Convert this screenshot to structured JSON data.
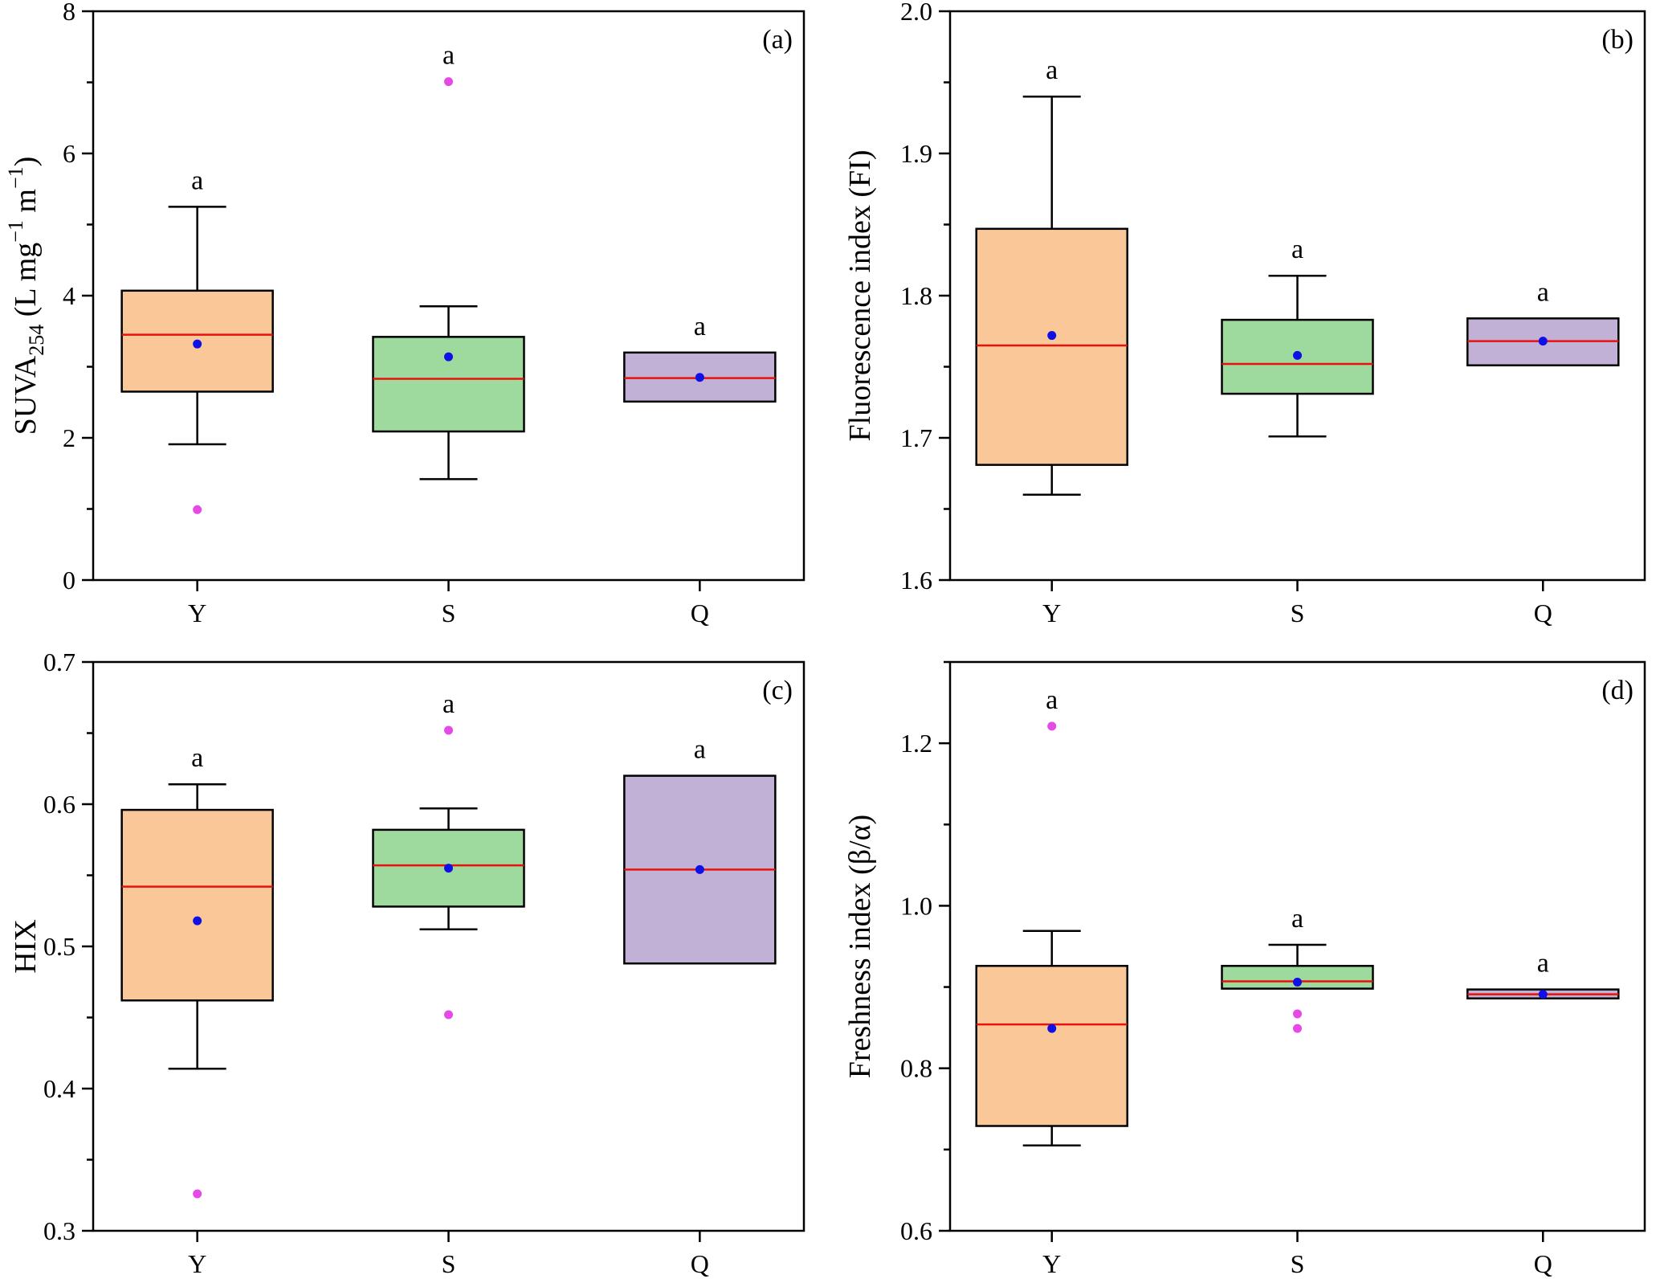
{
  "figure": {
    "categories": [
      "Y",
      "S",
      "Q"
    ],
    "colors": {
      "box_fills": [
        "#fac898",
        "#9ed99d",
        "#c2b1d6"
      ],
      "median": "#e8120c",
      "mean": "#0f10e6",
      "outlier": "#e64ae6",
      "axis": "#000000"
    }
  },
  "chart_data": [
    {
      "type": "box",
      "panel": "(a)",
      "ylabel": "SUVA254 (L mg−1 m−1)",
      "ylabel_parts": {
        "base": "SUVA",
        "sub": "254",
        "unit_open": " (L mg",
        "sup1": "−1",
        "unit_mid": " m",
        "sup2": "−1",
        "unit_close": ")"
      },
      "ylim": [
        0,
        8
      ],
      "yticks": [
        0,
        2,
        4,
        6,
        8
      ],
      "ytick_labels": [
        "0",
        "2",
        "4",
        "6",
        "8"
      ],
      "minor_step": 1,
      "categories": [
        "Y",
        "S",
        "Q"
      ],
      "boxes": [
        {
          "name": "Y",
          "whisker_low": 1.91,
          "q1": 2.65,
          "median": 3.45,
          "q3": 4.07,
          "whisker_high": 5.25,
          "mean": 3.32,
          "outliers": [
            0.99
          ],
          "letter": "a"
        },
        {
          "name": "S",
          "whisker_low": 1.42,
          "q1": 2.09,
          "median": 2.83,
          "q3": 3.42,
          "whisker_high": 3.85,
          "mean": 3.14,
          "outliers": [
            7.01
          ],
          "letter": "a"
        },
        {
          "name": "Q",
          "whisker_low": null,
          "q1": 2.51,
          "median": 2.84,
          "q3": 3.2,
          "whisker_high": null,
          "mean": 2.85,
          "outliers": [],
          "letter": "a"
        }
      ]
    },
    {
      "type": "box",
      "panel": "(b)",
      "ylabel": "Fluorescence index (FI)",
      "ylim": [
        1.6,
        2.0
      ],
      "yticks": [
        1.6,
        1.7,
        1.8,
        1.9,
        2.0
      ],
      "ytick_labels": [
        "1.6",
        "1.7",
        "1.8",
        "1.9",
        "2.0"
      ],
      "minor_step": 0.05,
      "categories": [
        "Y",
        "S",
        "Q"
      ],
      "boxes": [
        {
          "name": "Y",
          "whisker_low": 1.66,
          "q1": 1.681,
          "median": 1.765,
          "q3": 1.847,
          "whisker_high": 1.94,
          "mean": 1.772,
          "outliers": [],
          "letter": "a"
        },
        {
          "name": "S",
          "whisker_low": 1.701,
          "q1": 1.731,
          "median": 1.752,
          "q3": 1.783,
          "whisker_high": 1.814,
          "mean": 1.758,
          "outliers": [],
          "letter": "a"
        },
        {
          "name": "Q",
          "whisker_low": null,
          "q1": 1.751,
          "median": 1.768,
          "q3": 1.784,
          "whisker_high": null,
          "mean": 1.768,
          "outliers": [],
          "letter": "a"
        }
      ]
    },
    {
      "type": "box",
      "panel": "(c)",
      "ylabel": "HIX",
      "ylim": [
        0.3,
        0.7
      ],
      "yticks": [
        0.3,
        0.4,
        0.5,
        0.6,
        0.7
      ],
      "ytick_labels": [
        "0.3",
        "0.4",
        "0.5",
        "0.6",
        "0.7"
      ],
      "minor_step": 0.05,
      "categories": [
        "Y",
        "S",
        "Q"
      ],
      "boxes": [
        {
          "name": "Y",
          "whisker_low": 0.414,
          "q1": 0.462,
          "median": 0.542,
          "q3": 0.596,
          "whisker_high": 0.614,
          "mean": 0.518,
          "outliers": [
            0.326
          ],
          "letter": "a"
        },
        {
          "name": "S",
          "whisker_low": 0.512,
          "q1": 0.528,
          "median": 0.557,
          "q3": 0.582,
          "whisker_high": 0.597,
          "mean": 0.555,
          "outliers": [
            0.652,
            0.452
          ],
          "letter": "a"
        },
        {
          "name": "Q",
          "whisker_low": null,
          "q1": 0.488,
          "median": 0.554,
          "q3": 0.62,
          "whisker_high": null,
          "mean": 0.554,
          "outliers": [],
          "letter": "a"
        }
      ]
    },
    {
      "type": "box",
      "panel": "(d)",
      "ylabel": "Freshness index (β/α)",
      "ylim": [
        0.6,
        1.3
      ],
      "yticks": [
        0.6,
        0.8,
        1.0,
        1.2
      ],
      "ytick_labels": [
        "0.6",
        "0.8",
        "1.0",
        "1.2"
      ],
      "minor_step": 0.1,
      "categories": [
        "Y",
        "S",
        "Q"
      ],
      "boxes": [
        {
          "name": "Y",
          "whisker_low": 0.705,
          "q1": 0.729,
          "median": 0.854,
          "q3": 0.926,
          "whisker_high": 0.969,
          "mean": 0.849,
          "outliers": [
            1.221
          ],
          "letter": "a"
        },
        {
          "name": "S",
          "whisker_low": null,
          "q1": 0.898,
          "median": 0.907,
          "q3": 0.926,
          "whisker_high": 0.952,
          "mean": 0.906,
          "outliers": [
            0.867,
            0.849
          ],
          "letter": "a"
        },
        {
          "name": "Q",
          "whisker_low": null,
          "q1": 0.886,
          "median": 0.891,
          "q3": 0.897,
          "whisker_high": null,
          "mean": 0.891,
          "outliers": [],
          "letter": "a"
        }
      ]
    }
  ]
}
